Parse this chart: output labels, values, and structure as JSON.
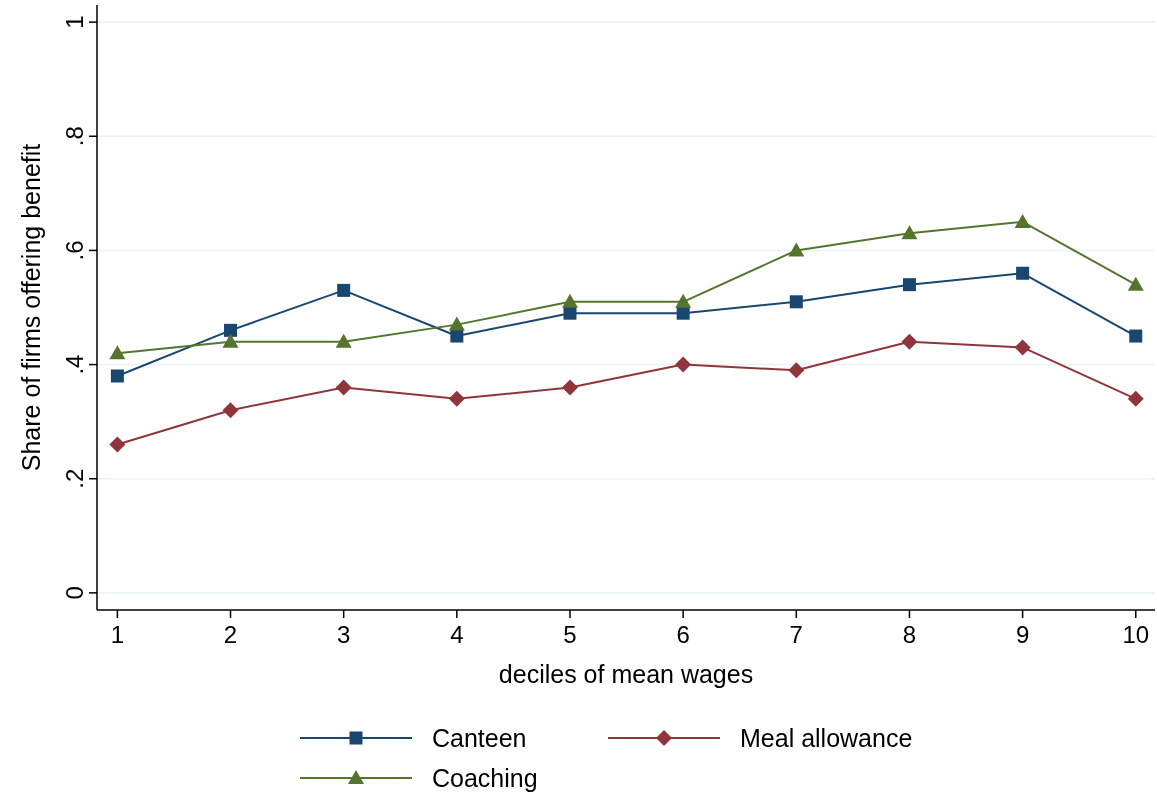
{
  "chart_data": {
    "type": "line",
    "xlabel": "deciles of mean wages",
    "ylabel": "Share of firms offering benefit",
    "x": [
      1,
      2,
      3,
      4,
      5,
      6,
      7,
      8,
      9,
      10
    ],
    "xlim": [
      0.82,
      10.17
    ],
    "xticks": [
      1,
      2,
      3,
      4,
      5,
      6,
      7,
      8,
      9,
      10
    ],
    "ylim": [
      -0.03,
      1.03
    ],
    "yticks": [
      {
        "value": 0,
        "label": "0"
      },
      {
        "value": 0.2,
        "label": ".2"
      },
      {
        "value": 0.4,
        "label": ".4"
      },
      {
        "value": 0.6,
        "label": ".6"
      },
      {
        "value": 0.8,
        "label": ".8"
      },
      {
        "value": 1,
        "label": "1"
      }
    ],
    "grid": "y",
    "legend": "bottom",
    "line_style": "solid",
    "series": [
      {
        "name": "Canteen",
        "color": "#1a476f",
        "marker": "square",
        "values": [
          0.38,
          0.46,
          0.53,
          0.45,
          0.49,
          0.49,
          0.51,
          0.54,
          0.56,
          0.45
        ]
      },
      {
        "name": "Meal allowance",
        "color": "#90353b",
        "marker": "diamond",
        "values": [
          0.26,
          0.32,
          0.36,
          0.34,
          0.36,
          0.4,
          0.39,
          0.44,
          0.43,
          0.34
        ]
      },
      {
        "name": "Coaching",
        "color": "#55752f",
        "marker": "triangle",
        "values": [
          0.42,
          0.44,
          0.44,
          0.47,
          0.51,
          0.51,
          0.6,
          0.63,
          0.65,
          0.54
        ]
      }
    ]
  }
}
